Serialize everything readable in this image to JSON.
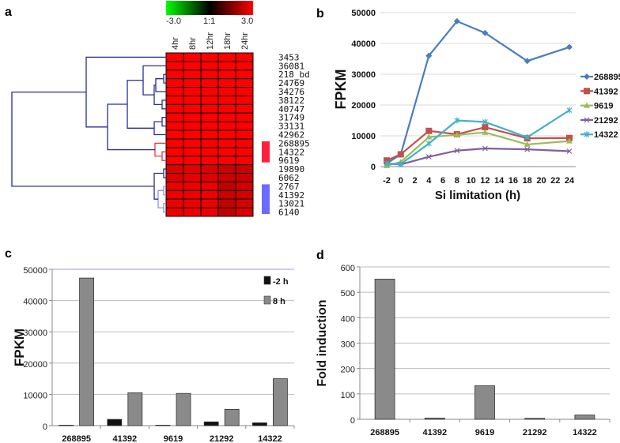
{
  "chart_data": [
    {
      "panel": "a",
      "type": "heatmap",
      "colorbar": {
        "min_label": "-3.0",
        "mid_label": "1:1",
        "max_label": "3.0",
        "low_color": "#00ff00",
        "mid_color": "#000000",
        "high_color": "#ff0000"
      },
      "columns": [
        "4hr",
        "8hr",
        "12hr",
        "18hr",
        "24hr"
      ],
      "rows": [
        "3453",
        "36081",
        "218_bd",
        "24769",
        "34276",
        "38122",
        "40747",
        "31749",
        "33131",
        "42962",
        "268895",
        "14322",
        "9619",
        "19890",
        "6062",
        "2767",
        "41392",
        "13021",
        "6140"
      ],
      "values": [
        [
          3,
          3,
          3,
          3,
          3
        ],
        [
          3,
          3,
          3,
          3,
          3
        ],
        [
          3,
          3,
          3,
          3,
          3
        ],
        [
          3,
          3,
          3,
          3,
          3
        ],
        [
          3,
          3,
          3,
          3,
          3
        ],
        [
          3,
          3,
          3,
          3,
          3
        ],
        [
          3,
          3,
          3,
          3,
          3
        ],
        [
          3,
          3,
          3,
          3,
          3
        ],
        [
          3,
          3,
          3,
          3,
          3
        ],
        [
          3,
          3,
          3,
          3,
          3
        ],
        [
          3,
          3,
          3,
          3,
          3
        ],
        [
          3,
          3,
          3,
          3,
          3
        ],
        [
          3,
          3,
          3,
          3,
          3
        ],
        [
          2.6,
          2.7,
          2.6,
          2.4,
          2.4
        ],
        [
          2.6,
          2.7,
          2.6,
          2.4,
          2.4
        ],
        [
          2.8,
          2.8,
          2.8,
          2.3,
          2.5
        ],
        [
          2.8,
          2.8,
          2.8,
          2.4,
          2.5
        ],
        [
          2.8,
          2.8,
          2.8,
          2.3,
          2.5
        ],
        [
          2.8,
          2.8,
          2.8,
          2.3,
          2.6
        ]
      ],
      "cluster_markers": [
        {
          "color": "#ff1f3d",
          "rows": [
            "268895",
            "14322",
            "9619"
          ]
        },
        {
          "color": "#6b6bff",
          "rows": [
            "2767",
            "41392",
            "13021",
            "6140"
          ]
        }
      ]
    },
    {
      "panel": "b",
      "type": "line",
      "xlabel": "Si limitation (h)",
      "ylabel": "FPKM",
      "xlim": [
        -2,
        24
      ],
      "ylim": [
        0,
        50000
      ],
      "xticks": [
        -2,
        0,
        2,
        4,
        6,
        8,
        10,
        12,
        14,
        16,
        18,
        20,
        22,
        24
      ],
      "yticks": [
        0,
        10000,
        20000,
        30000,
        40000,
        50000
      ],
      "x": [
        -2,
        0,
        4,
        8,
        12,
        18,
        24
      ],
      "legend_position": "right",
      "series": [
        {
          "name": "268895",
          "color": "#4a7ebb",
          "marker": "diamond",
          "values": [
            1000,
            4000,
            36000,
            47200,
            43400,
            34300,
            38800
          ]
        },
        {
          "name": "41392",
          "color": "#c0504d",
          "marker": "square",
          "values": [
            2000,
            4000,
            11600,
            10500,
            12800,
            9200,
            9300
          ]
        },
        {
          "name": "9619",
          "color": "#9bbb59",
          "marker": "triangle",
          "values": [
            300,
            1500,
            9600,
            10300,
            11100,
            7200,
            8300
          ]
        },
        {
          "name": "21292",
          "color": "#7f5fa1",
          "marker": "x",
          "values": [
            1000,
            700,
            3200,
            5200,
            5900,
            5600,
            5000
          ]
        },
        {
          "name": "14322",
          "color": "#3fb1cc",
          "marker": "star",
          "values": [
            1000,
            800,
            7500,
            15000,
            14500,
            9500,
            18300
          ]
        }
      ]
    },
    {
      "panel": "c",
      "type": "bar",
      "ylabel": "FPKM",
      "ylim": [
        0,
        50000
      ],
      "yticks": [
        0,
        10000,
        20000,
        30000,
        40000,
        50000
      ],
      "categories": [
        "268895",
        "41392",
        "9619",
        "21292",
        "14322"
      ],
      "legend_position": "top-right",
      "series": [
        {
          "name": "-2 h",
          "color": "#111111",
          "values": [
            150,
            2000,
            150,
            1200,
            900
          ]
        },
        {
          "name": "8 h",
          "color": "#8a8a8a",
          "values": [
            47200,
            10500,
            10300,
            5200,
            15000
          ]
        }
      ]
    },
    {
      "panel": "d",
      "type": "bar",
      "ylabel": "Fold induction",
      "ylim": [
        0,
        600
      ],
      "yticks": [
        0,
        100,
        200,
        300,
        400,
        500,
        600
      ],
      "categories": [
        "268895",
        "41392",
        "9619",
        "21292",
        "14322"
      ],
      "series": [
        {
          "name": "Fold induction",
          "color": "#8a8a8a",
          "values": [
            552,
            5,
            132,
            4,
            17
          ]
        }
      ]
    }
  ],
  "panel_labels": {
    "a": "a",
    "b": "b",
    "c": "c",
    "d": "d"
  }
}
